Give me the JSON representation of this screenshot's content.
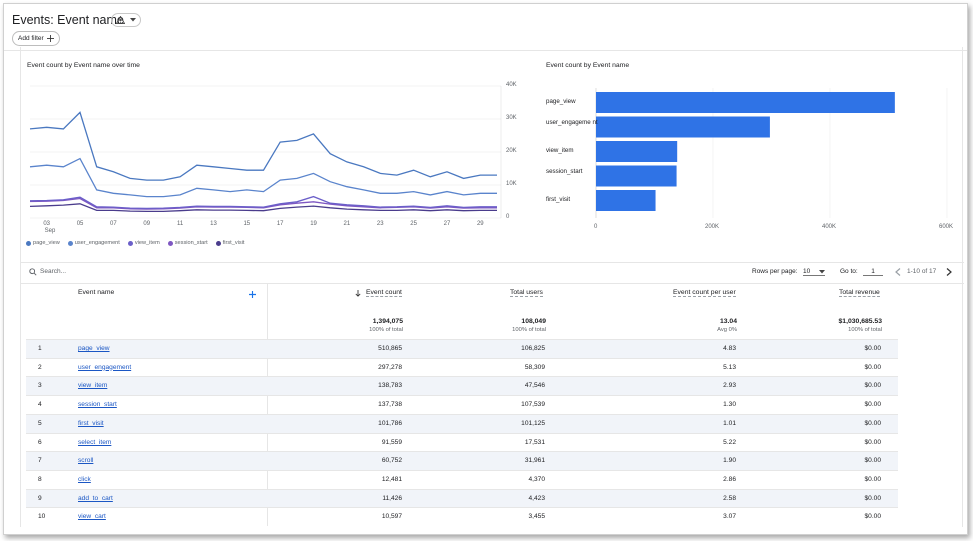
{
  "header": {
    "title": "Events: Event name",
    "add_filter": "Add filter"
  },
  "line_chart": {
    "title": "Event count by Event name over time",
    "y_ticks": [
      "40K",
      "30K",
      "20K",
      "10K",
      "0"
    ],
    "x_ticks": [
      "03",
      "05",
      "07",
      "09",
      "11",
      "13",
      "15",
      "17",
      "19",
      "21",
      "23",
      "25",
      "27",
      "29"
    ],
    "x_sub": "Sep",
    "legend": [
      "page_view",
      "user_engagement",
      "view_item",
      "session_start",
      "first_visit"
    ]
  },
  "bar_chart": {
    "title": "Event count by Event name",
    "x_ticks": [
      "0",
      "200K",
      "400K",
      "600K"
    ]
  },
  "chart_data": [
    {
      "type": "line",
      "title": "Event count by Event name over time",
      "x": [
        "02",
        "03",
        "04",
        "05",
        "06",
        "07",
        "08",
        "09",
        "10",
        "11",
        "12",
        "13",
        "14",
        "15",
        "16",
        "17",
        "18",
        "19",
        "20",
        "21",
        "22",
        "23",
        "24",
        "25",
        "26",
        "27",
        "28",
        "29",
        "30"
      ],
      "ylim": [
        0,
        40000
      ],
      "series": [
        {
          "name": "page_view",
          "color": "#4a78c0",
          "values": [
            27000,
            27500,
            27000,
            32000,
            15500,
            14000,
            12000,
            11500,
            11500,
            12500,
            16000,
            15500,
            15000,
            14500,
            14500,
            23000,
            23500,
            25500,
            19500,
            17000,
            15500,
            13500,
            13000,
            14500,
            12500,
            14000,
            12000,
            13000,
            13000
          ]
        },
        {
          "name": "user_engagement",
          "color": "#5a84cc",
          "values": [
            15500,
            16000,
            15500,
            18000,
            8500,
            7500,
            7000,
            6500,
            6500,
            7000,
            9000,
            8500,
            8000,
            8500,
            8000,
            11500,
            12000,
            13500,
            11000,
            9500,
            8500,
            7500,
            7500,
            8000,
            7000,
            8000,
            7000,
            7500,
            7500
          ]
        },
        {
          "name": "view_item",
          "color": "#6b5fc9",
          "values": [
            5200,
            5300,
            5500,
            6300,
            3400,
            3300,
            3000,
            2900,
            3000,
            3200,
            3600,
            3500,
            3500,
            3400,
            3300,
            4300,
            4900,
            6500,
            4500,
            4000,
            3700,
            3300,
            3400,
            3600,
            3200,
            3700,
            3200,
            3400,
            3400
          ]
        },
        {
          "name": "session_start",
          "color": "#7e57c2",
          "values": [
            5000,
            5100,
            5300,
            5900,
            3100,
            3100,
            2800,
            2700,
            2800,
            3000,
            3400,
            3300,
            3300,
            3200,
            3100,
            4000,
            4500,
            4900,
            4200,
            3700,
            3400,
            3100,
            3200,
            3400,
            3000,
            3400,
            3000,
            3100,
            3100
          ]
        },
        {
          "name": "first_visit",
          "color": "#4a3c8c",
          "values": [
            3500,
            3700,
            3900,
            4300,
            2300,
            2300,
            2100,
            2000,
            2000,
            2200,
            2500,
            2400,
            2400,
            2300,
            2200,
            2900,
            3300,
            3600,
            3100,
            2700,
            2500,
            2300,
            2300,
            2500,
            2200,
            2500,
            2200,
            2300,
            2300
          ]
        }
      ]
    },
    {
      "type": "bar",
      "title": "Event count by Event name",
      "categories": [
        "page_view",
        "user_engageme nt",
        "view_item",
        "session_start",
        "first_visit"
      ],
      "values": [
        510865,
        297278,
        138783,
        137738,
        101786
      ],
      "xlim": [
        0,
        600000
      ],
      "color": "#2f73e6"
    }
  ],
  "table": {
    "search_placeholder": "Search...",
    "rows_per_page_label": "Rows per page:",
    "rows_per_page_value": "10",
    "goto_label": "Go to:",
    "goto_value": "1",
    "range": "1-10 of 17",
    "headers": {
      "name": "Event name",
      "count": "Event count",
      "users": "Total users",
      "per_user": "Event count per user",
      "revenue": "Total revenue"
    },
    "totals": {
      "count": "1,394,075",
      "count_sub": "100% of total",
      "users": "108,049",
      "users_sub": "100% of total",
      "per_user": "13.04",
      "per_user_sub": "Avg 0%",
      "revenue": "$1,030,685.53",
      "revenue_sub": "100% of total"
    },
    "rows": [
      [
        "1",
        "page_view",
        "510,865",
        "106,825",
        "4.83",
        "$0.00"
      ],
      [
        "2",
        "user_engagement",
        "297,278",
        "58,309",
        "5.13",
        "$0.00"
      ],
      [
        "3",
        "view_item",
        "138,783",
        "47,546",
        "2.93",
        "$0.00"
      ],
      [
        "4",
        "session_start",
        "137,738",
        "107,539",
        "1.30",
        "$0.00"
      ],
      [
        "5",
        "first_visit",
        "101,786",
        "101,125",
        "1.01",
        "$0.00"
      ],
      [
        "6",
        "select_item",
        "91,559",
        "17,531",
        "5.22",
        "$0.00"
      ],
      [
        "7",
        "scroll",
        "60,752",
        "31,961",
        "1.90",
        "$0.00"
      ],
      [
        "8",
        "click",
        "12,481",
        "4,370",
        "2.86",
        "$0.00"
      ],
      [
        "9",
        "add_to_cart",
        "11,426",
        "4,423",
        "2.58",
        "$0.00"
      ],
      [
        "10",
        "view_cart",
        "10,597",
        "3,455",
        "3.07",
        "$0.00"
      ]
    ]
  }
}
